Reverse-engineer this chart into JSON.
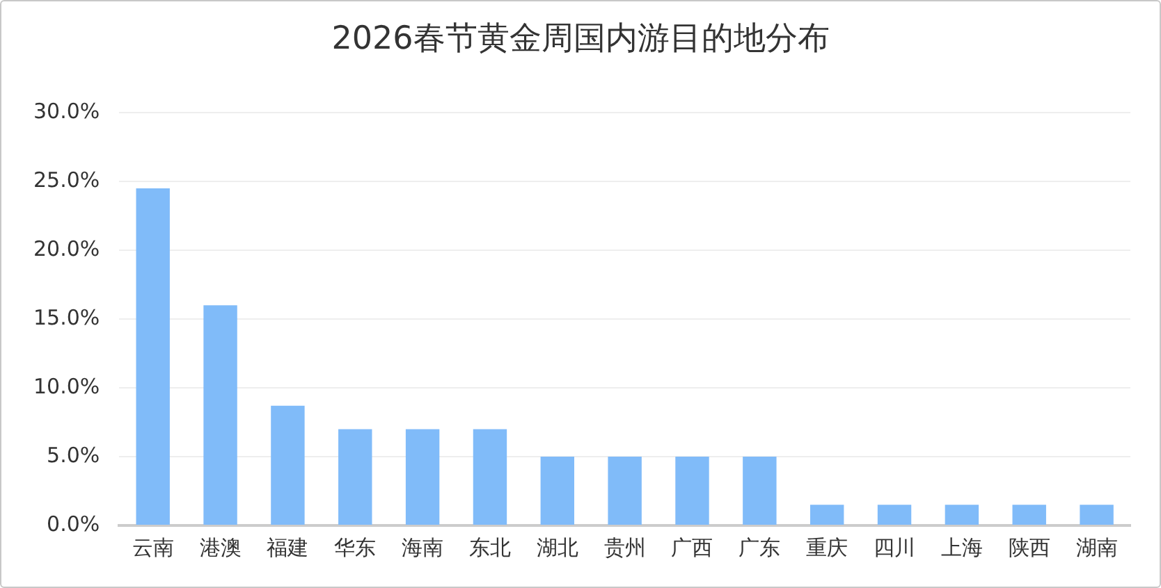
{
  "chart_data": {
    "type": "bar",
    "title": "2026春节黄金周国内游目的地分布",
    "categories": [
      "云南",
      "港澳",
      "福建",
      "华东",
      "海南",
      "东北",
      "湖北",
      "贵州",
      "广西",
      "广东",
      "重庆",
      "四川",
      "上海",
      "陕西",
      "湖南"
    ],
    "values": [
      24.5,
      16,
      8.7,
      7,
      7,
      7,
      5,
      5,
      5,
      5,
      1.5,
      1.5,
      1.5,
      1.5,
      1.5
    ],
    "color": "#80bbf9",
    "ylim": [
      0,
      30
    ],
    "yticks": [
      {
        "value": 0,
        "label": "0.0%"
      },
      {
        "value": 5,
        "label": "5.0%"
      },
      {
        "value": 10,
        "label": "10.0%"
      },
      {
        "value": 15,
        "label": "15.0%"
      },
      {
        "value": 20,
        "label": "20.0%"
      },
      {
        "value": 25,
        "label": "25.0%"
      },
      {
        "value": 30,
        "label": "30.0%"
      }
    ],
    "grid": "y",
    "legend": false
  }
}
